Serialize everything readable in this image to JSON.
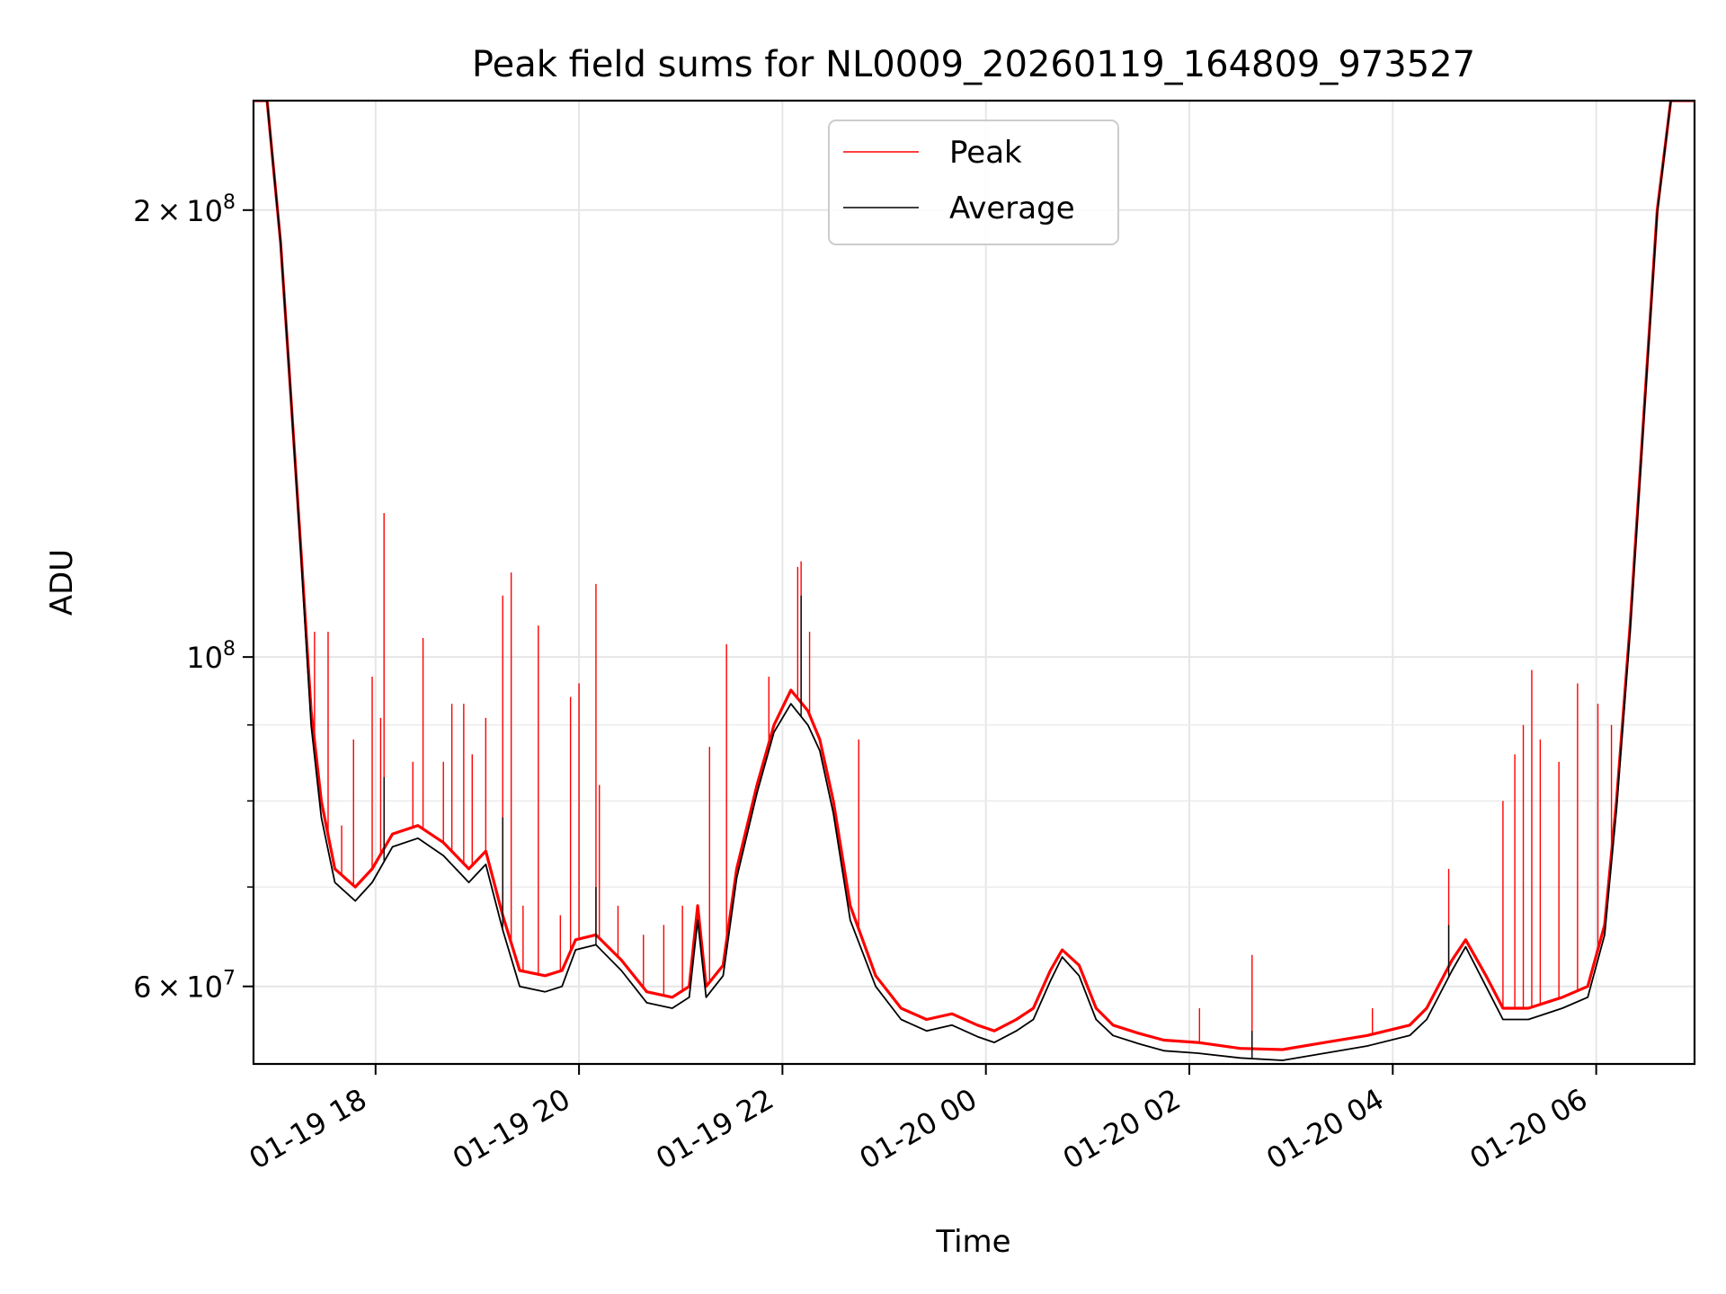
{
  "chart_data": {
    "type": "line",
    "title": "Peak field sums for NL0009_20260119_164809_973527",
    "xlabel": "Time",
    "ylabel": "ADU",
    "x_scale": "time",
    "y_scale": "log",
    "xlim": [
      "2026-01-19 16:48",
      "2026-01-20 06:58"
    ],
    "ylim": [
      53200000,
      237000000
    ],
    "grid": true,
    "legend": {
      "position": "upper-center"
    },
    "x_ticks": [
      {
        "at": "2026-01-19 18:00",
        "label": "01-19 18"
      },
      {
        "at": "2026-01-19 20:00",
        "label": "01-19 20"
      },
      {
        "at": "2026-01-19 22:00",
        "label": "01-19 22"
      },
      {
        "at": "2026-01-20 00:00",
        "label": "01-20 00"
      },
      {
        "at": "2026-01-20 02:00",
        "label": "01-20 02"
      },
      {
        "at": "2026-01-20 04:00",
        "label": "01-20 04"
      },
      {
        "at": "2026-01-20 06:00",
        "label": "01-20 06"
      }
    ],
    "y_ticks": [
      {
        "value": 60000000,
        "base": "6",
        "exp": "7"
      },
      {
        "value": 100000000,
        "base": "",
        "exp": "8"
      },
      {
        "value": 200000000,
        "base": "2",
        "exp": "8"
      }
    ],
    "y_minor_ticks": [
      70000000,
      80000000,
      90000000
    ],
    "series": [
      {
        "name": "Peak",
        "color": "#ff0000",
        "points": [
          [
            "2026-01-19 16:48",
            237000000
          ],
          [
            "2026-01-19 16:56",
            237000000
          ],
          [
            "2026-01-19 17:04",
            190000000
          ],
          [
            "2026-01-19 17:10",
            150000000
          ],
          [
            "2026-01-19 17:16",
            118000000
          ],
          [
            "2026-01-19 17:22",
            92000000
          ],
          [
            "2026-01-19 17:28",
            80000000
          ],
          [
            "2026-01-19 17:36",
            72000000
          ],
          [
            "2026-01-19 17:48",
            70000000
          ],
          [
            "2026-01-19 17:58",
            72000000
          ],
          [
            "2026-01-19 18:10",
            76000000
          ],
          [
            "2026-01-19 18:25",
            77000000
          ],
          [
            "2026-01-19 18:40",
            75000000
          ],
          [
            "2026-01-19 18:55",
            72000000
          ],
          [
            "2026-01-19 19:05",
            74000000
          ],
          [
            "2026-01-19 19:15",
            67000000
          ],
          [
            "2026-01-19 19:25",
            61500000
          ],
          [
            "2026-01-19 19:40",
            61000000
          ],
          [
            "2026-01-19 19:50",
            61500000
          ],
          [
            "2026-01-19 19:58",
            64500000
          ],
          [
            "2026-01-19 20:10",
            65000000
          ],
          [
            "2026-01-19 20:25",
            62500000
          ],
          [
            "2026-01-19 20:40",
            59500000
          ],
          [
            "2026-01-19 20:55",
            59000000
          ],
          [
            "2026-01-19 21:05",
            60000000
          ],
          [
            "2026-01-19 21:10",
            68000000
          ],
          [
            "2026-01-19 21:15",
            60000000
          ],
          [
            "2026-01-19 21:25",
            62000000
          ],
          [
            "2026-01-19 21:33",
            72000000
          ],
          [
            "2026-01-19 21:45",
            82000000
          ],
          [
            "2026-01-19 21:55",
            90000000
          ],
          [
            "2026-01-19 22:05",
            95000000
          ],
          [
            "2026-01-19 22:15",
            92000000
          ],
          [
            "2026-01-19 22:22",
            88000000
          ],
          [
            "2026-01-19 22:30",
            80000000
          ],
          [
            "2026-01-19 22:40",
            68000000
          ],
          [
            "2026-01-19 22:55",
            61000000
          ],
          [
            "2026-01-19 23:10",
            58000000
          ],
          [
            "2026-01-19 23:25",
            57000000
          ],
          [
            "2026-01-19 23:40",
            57500000
          ],
          [
            "2026-01-19 23:55",
            56500000
          ],
          [
            "2026-01-20 00:05",
            56000000
          ],
          [
            "2026-01-20 00:18",
            57000000
          ],
          [
            "2026-01-20 00:28",
            58000000
          ],
          [
            "2026-01-20 00:38",
            61500000
          ],
          [
            "2026-01-20 00:45",
            63500000
          ],
          [
            "2026-01-20 00:55",
            62000000
          ],
          [
            "2026-01-20 01:05",
            58000000
          ],
          [
            "2026-01-20 01:15",
            56500000
          ],
          [
            "2026-01-20 01:30",
            55800000
          ],
          [
            "2026-01-20 01:45",
            55200000
          ],
          [
            "2026-01-20 02:05",
            55000000
          ],
          [
            "2026-01-20 02:30",
            54500000
          ],
          [
            "2026-01-20 02:55",
            54400000
          ],
          [
            "2026-01-20 03:20",
            55000000
          ],
          [
            "2026-01-20 03:45",
            55600000
          ],
          [
            "2026-01-20 04:10",
            56500000
          ],
          [
            "2026-01-20 04:20",
            58000000
          ],
          [
            "2026-01-20 04:35",
            62500000
          ],
          [
            "2026-01-20 04:43",
            64500000
          ],
          [
            "2026-01-20 04:55",
            61000000
          ],
          [
            "2026-01-20 05:05",
            58000000
          ],
          [
            "2026-01-20 05:20",
            58000000
          ],
          [
            "2026-01-20 05:40",
            59000000
          ],
          [
            "2026-01-20 05:55",
            60000000
          ],
          [
            "2026-01-20 06:05",
            66000000
          ],
          [
            "2026-01-20 06:12",
            80000000
          ],
          [
            "2026-01-20 06:20",
            105000000
          ],
          [
            "2026-01-20 06:28",
            145000000
          ],
          [
            "2026-01-20 06:36",
            200000000
          ],
          [
            "2026-01-20 06:44",
            237000000
          ],
          [
            "2026-01-20 06:58",
            237000000
          ]
        ],
        "spikes": [
          [
            "2026-01-19 17:24",
            104000000
          ],
          [
            "2026-01-19 17:32",
            104000000
          ],
          [
            "2026-01-19 17:40",
            77000000
          ],
          [
            "2026-01-19 17:47",
            88000000
          ],
          [
            "2026-01-19 17:58",
            97000000
          ],
          [
            "2026-01-19 18:03",
            91000000
          ],
          [
            "2026-01-19 18:05",
            125000000
          ],
          [
            "2026-01-19 18:22",
            85000000
          ],
          [
            "2026-01-19 18:28",
            103000000
          ],
          [
            "2026-01-19 18:40",
            85000000
          ],
          [
            "2026-01-19 18:45",
            93000000
          ],
          [
            "2026-01-19 18:52",
            93000000
          ],
          [
            "2026-01-19 18:57",
            86000000
          ],
          [
            "2026-01-19 19:05",
            91000000
          ],
          [
            "2026-01-19 19:15",
            110000000
          ],
          [
            "2026-01-19 19:20",
            114000000
          ],
          [
            "2026-01-19 19:27",
            68000000
          ],
          [
            "2026-01-19 19:36",
            105000000
          ],
          [
            "2026-01-19 19:49",
            67000000
          ],
          [
            "2026-01-19 19:55",
            94000000
          ],
          [
            "2026-01-19 20:00",
            96000000
          ],
          [
            "2026-01-19 20:10",
            112000000
          ],
          [
            "2026-01-19 20:12",
            82000000
          ],
          [
            "2026-01-19 20:23",
            68000000
          ],
          [
            "2026-01-19 20:38",
            65000000
          ],
          [
            "2026-01-19 20:50",
            66000000
          ],
          [
            "2026-01-19 21:01",
            68000000
          ],
          [
            "2026-01-19 21:17",
            87000000
          ],
          [
            "2026-01-19 21:27",
            102000000
          ],
          [
            "2026-01-19 21:52",
            97000000
          ],
          [
            "2026-01-19 22:09",
            115000000
          ],
          [
            "2026-01-19 22:11",
            116000000
          ],
          [
            "2026-01-19 22:16",
            104000000
          ],
          [
            "2026-01-19 22:45",
            88000000
          ],
          [
            "2026-01-20 02:06",
            58000000
          ],
          [
            "2026-01-20 02:37",
            63000000
          ],
          [
            "2026-01-20 03:48",
            58000000
          ],
          [
            "2026-01-20 04:33",
            72000000
          ],
          [
            "2026-01-20 05:05",
            80000000
          ],
          [
            "2026-01-20 05:12",
            86000000
          ],
          [
            "2026-01-20 05:17",
            90000000
          ],
          [
            "2026-01-20 05:22",
            98000000
          ],
          [
            "2026-01-20 05:27",
            88000000
          ],
          [
            "2026-01-20 05:38",
            85000000
          ],
          [
            "2026-01-20 05:49",
            96000000
          ],
          [
            "2026-01-20 06:01",
            93000000
          ],
          [
            "2026-01-20 06:09",
            90000000
          ],
          [
            "2026-01-20 06:22",
            114000000
          ]
        ]
      },
      {
        "name": "Average",
        "color": "#000000",
        "points": [
          [
            "2026-01-19 16:48",
            237000000
          ],
          [
            "2026-01-19 16:56",
            237000000
          ],
          [
            "2026-01-19 17:04",
            190000000
          ],
          [
            "2026-01-19 17:10",
            150000000
          ],
          [
            "2026-01-19 17:16",
            117000000
          ],
          [
            "2026-01-19 17:22",
            90000000
          ],
          [
            "2026-01-19 17:28",
            78000000
          ],
          [
            "2026-01-19 17:36",
            70500000
          ],
          [
            "2026-01-19 17:48",
            68500000
          ],
          [
            "2026-01-19 17:58",
            70500000
          ],
          [
            "2026-01-19 18:10",
            74500000
          ],
          [
            "2026-01-19 18:25",
            75500000
          ],
          [
            "2026-01-19 18:40",
            73500000
          ],
          [
            "2026-01-19 18:55",
            70500000
          ],
          [
            "2026-01-19 19:05",
            72500000
          ],
          [
            "2026-01-19 19:15",
            65500000
          ],
          [
            "2026-01-19 19:25",
            60000000
          ],
          [
            "2026-01-19 19:40",
            59500000
          ],
          [
            "2026-01-19 19:50",
            60000000
          ],
          [
            "2026-01-19 19:58",
            63500000
          ],
          [
            "2026-01-19 20:10",
            64000000
          ],
          [
            "2026-01-19 20:25",
            61500000
          ],
          [
            "2026-01-19 20:40",
            58500000
          ],
          [
            "2026-01-19 20:55",
            58000000
          ],
          [
            "2026-01-19 21:05",
            59000000
          ],
          [
            "2026-01-19 21:10",
            66500000
          ],
          [
            "2026-01-19 21:15",
            59000000
          ],
          [
            "2026-01-19 21:25",
            61000000
          ],
          [
            "2026-01-19 21:33",
            71000000
          ],
          [
            "2026-01-19 21:45",
            81000000
          ],
          [
            "2026-01-19 21:55",
            89000000
          ],
          [
            "2026-01-19 22:05",
            93000000
          ],
          [
            "2026-01-19 22:15",
            90000000
          ],
          [
            "2026-01-19 22:22",
            86500000
          ],
          [
            "2026-01-19 22:30",
            78500000
          ],
          [
            "2026-01-19 22:40",
            66500000
          ],
          [
            "2026-01-19 22:55",
            60000000
          ],
          [
            "2026-01-19 23:10",
            57000000
          ],
          [
            "2026-01-19 23:25",
            56000000
          ],
          [
            "2026-01-19 23:40",
            56500000
          ],
          [
            "2026-01-19 23:55",
            55500000
          ],
          [
            "2026-01-20 00:05",
            55000000
          ],
          [
            "2026-01-20 00:18",
            56000000
          ],
          [
            "2026-01-20 00:28",
            57000000
          ],
          [
            "2026-01-20 00:38",
            60500000
          ],
          [
            "2026-01-20 00:45",
            62800000
          ],
          [
            "2026-01-20 00:55",
            61000000
          ],
          [
            "2026-01-20 01:05",
            57000000
          ],
          [
            "2026-01-20 01:15",
            55600000
          ],
          [
            "2026-01-20 01:30",
            54900000
          ],
          [
            "2026-01-20 01:45",
            54300000
          ],
          [
            "2026-01-20 02:05",
            54100000
          ],
          [
            "2026-01-20 02:30",
            53700000
          ],
          [
            "2026-01-20 02:55",
            53500000
          ],
          [
            "2026-01-20 03:20",
            54100000
          ],
          [
            "2026-01-20 03:45",
            54700000
          ],
          [
            "2026-01-20 04:10",
            55600000
          ],
          [
            "2026-01-20 04:20",
            57000000
          ],
          [
            "2026-01-20 04:35",
            61500000
          ],
          [
            "2026-01-20 04:43",
            63800000
          ],
          [
            "2026-01-20 04:55",
            60000000
          ],
          [
            "2026-01-20 05:05",
            57000000
          ],
          [
            "2026-01-20 05:20",
            57000000
          ],
          [
            "2026-01-20 05:40",
            58000000
          ],
          [
            "2026-01-20 05:55",
            59000000
          ],
          [
            "2026-01-20 06:05",
            65000000
          ],
          [
            "2026-01-20 06:12",
            79000000
          ],
          [
            "2026-01-20 06:20",
            104000000
          ],
          [
            "2026-01-20 06:28",
            144000000
          ],
          [
            "2026-01-20 06:36",
            199000000
          ],
          [
            "2026-01-20 06:44",
            237000000
          ],
          [
            "2026-01-20 06:58",
            237000000
          ]
        ],
        "spikes": [
          [
            "2026-01-19 18:05",
            83000000
          ],
          [
            "2026-01-19 19:15",
            78000000
          ],
          [
            "2026-01-19 20:10",
            70000000
          ],
          [
            "2026-01-19 22:11",
            110000000
          ],
          [
            "2026-01-20 02:37",
            56000000
          ],
          [
            "2026-01-20 04:33",
            66000000
          ]
        ]
      }
    ]
  }
}
